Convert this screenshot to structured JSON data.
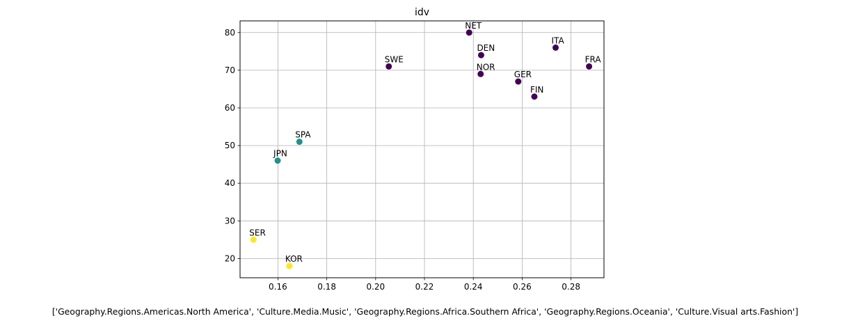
{
  "chart_data": {
    "type": "scatter",
    "title": "idv",
    "xlabel": "['Geography.Regions.Americas.North America', 'Culture.Media.Music', 'Geography.Regions.Africa.Southern Africa', 'Geography.Regions.Oceania', 'Culture.Visual arts.Fashion']",
    "ylabel": "",
    "xlim": [
      0.1445,
      0.2935
    ],
    "ylim": [
      14.9,
      83.1
    ],
    "xticks": [
      0.16,
      0.18,
      0.2,
      0.22,
      0.24,
      0.26,
      0.28
    ],
    "xtick_labels": [
      "0.16",
      "0.18",
      "0.20",
      "0.22",
      "0.24",
      "0.26",
      "0.28"
    ],
    "yticks": [
      20,
      30,
      40,
      50,
      60,
      70,
      80
    ],
    "ytick_labels": [
      "20",
      "30",
      "40",
      "50",
      "60",
      "70",
      "80"
    ],
    "grid": true,
    "colors": {
      "purple": "#440154",
      "teal": "#21918c",
      "yellow": "#fde725",
      "grid": "#b0b0b0"
    },
    "points": [
      {
        "label": "NET",
        "x": 0.2383,
        "y": 80,
        "color": "purple"
      },
      {
        "label": "DEN",
        "x": 0.2432,
        "y": 74,
        "color": "purple"
      },
      {
        "label": "ITA",
        "x": 0.2737,
        "y": 76,
        "color": "purple"
      },
      {
        "label": "SWE",
        "x": 0.2054,
        "y": 71,
        "color": "purple"
      },
      {
        "label": "FRA",
        "x": 0.2874,
        "y": 71,
        "color": "purple"
      },
      {
        "label": "NOR",
        "x": 0.243,
        "y": 69,
        "color": "purple"
      },
      {
        "label": "GER",
        "x": 0.2584,
        "y": 67,
        "color": "purple"
      },
      {
        "label": "FIN",
        "x": 0.265,
        "y": 63,
        "color": "purple"
      },
      {
        "label": "SPA",
        "x": 0.1688,
        "y": 51,
        "color": "teal"
      },
      {
        "label": "JPN",
        "x": 0.1599,
        "y": 46,
        "color": "teal"
      },
      {
        "label": "SER",
        "x": 0.15,
        "y": 25,
        "color": "yellow"
      },
      {
        "label": "KOR",
        "x": 0.1647,
        "y": 18,
        "color": "yellow"
      }
    ]
  }
}
